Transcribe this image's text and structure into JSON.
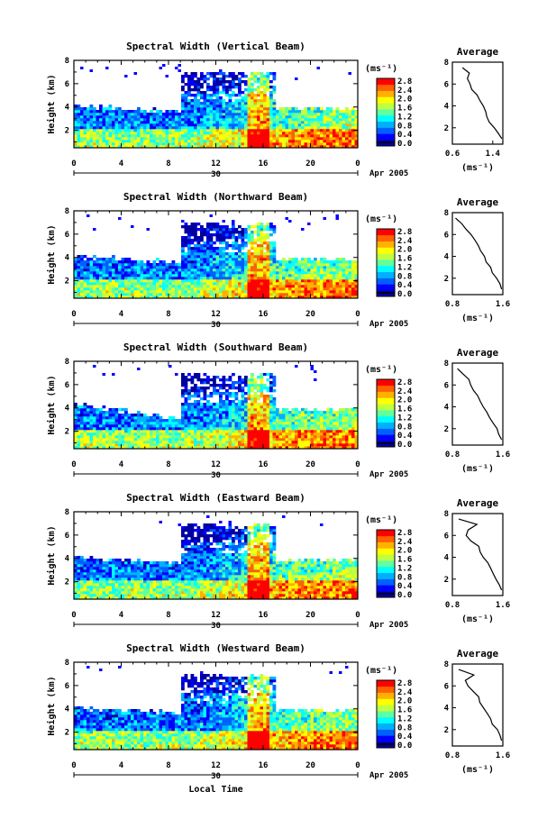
{
  "figure": {
    "xlabel": "Local Time"
  },
  "colorbar": {
    "unit_label": "(ms⁻¹)",
    "ticks": [
      "0.0",
      "0.4",
      "0.8",
      "1.2",
      "1.6",
      "2.0",
      "2.4",
      "2.8"
    ],
    "colors": [
      "#0000a0",
      "#0000ff",
      "#0060ff",
      "#00b0ff",
      "#00ffff",
      "#60ffa0",
      "#c0ff40",
      "#ffff00",
      "#ffb000",
      "#ff6000",
      "#ff0000"
    ]
  },
  "chart_data": [
    {
      "type": "heatmap",
      "title": "Spectral Width (Vertical Beam)",
      "ylabel": "Height (km)",
      "xlim": [
        0,
        24
      ],
      "ylim": [
        0.5,
        8
      ],
      "xticks": [
        "0",
        "4",
        "8",
        "12",
        "16",
        "20",
        "0"
      ],
      "yticks": [
        "2",
        "4",
        "6",
        "8"
      ],
      "date_marker": "30",
      "date_label": "Apr 2005",
      "profile": {
        "title": "Average",
        "xlim": [
          0.6,
          1.6
        ],
        "xticks": [
          "0.6",
          "1.4"
        ],
        "xlabel": "(ms⁻¹)",
        "heights": [
          1.0,
          1.5,
          2.0,
          2.5,
          3.0,
          3.5,
          4.0,
          4.5,
          5.0,
          5.5,
          6.0,
          6.5,
          7.0,
          7.5
        ],
        "values": [
          1.58,
          1.5,
          1.45,
          1.35,
          1.3,
          1.25,
          1.2,
          1.15,
          1.1,
          1.0,
          0.95,
          0.9,
          0.95,
          0.8
        ]
      }
    },
    {
      "type": "heatmap",
      "title": "Spectral Width (Northward Beam)",
      "ylabel": "Height (km)",
      "xlim": [
        0,
        24
      ],
      "ylim": [
        0.5,
        8
      ],
      "xticks": [
        "0",
        "4",
        "8",
        "12",
        "16",
        "20",
        "0"
      ],
      "yticks": [
        "2",
        "4",
        "6",
        "8"
      ],
      "date_marker": "30",
      "date_label": "Apr 2005",
      "profile": {
        "title": "Average",
        "xlim": [
          0.8,
          1.6
        ],
        "xticks": [
          "0.8",
          "1.6"
        ],
        "xlabel": "(ms⁻¹)",
        "heights": [
          1.0,
          1.5,
          2.0,
          2.5,
          3.0,
          3.5,
          4.0,
          4.5,
          5.0,
          5.5,
          6.0,
          6.5,
          7.0,
          7.5
        ],
        "values": [
          1.58,
          1.55,
          1.5,
          1.45,
          1.4,
          1.35,
          1.3,
          1.25,
          1.2,
          1.15,
          1.1,
          1.0,
          0.95,
          0.85
        ]
      }
    },
    {
      "type": "heatmap",
      "title": "Spectral Width (Southward Beam)",
      "ylabel": "Height (km)",
      "xlim": [
        0,
        24
      ],
      "ylim": [
        0.5,
        8
      ],
      "xticks": [
        "0",
        "4",
        "8",
        "12",
        "16",
        "20",
        "0"
      ],
      "yticks": [
        "2",
        "4",
        "6",
        "8"
      ],
      "date_marker": "30",
      "date_label": "Apr 2005",
      "profile": {
        "title": "Average",
        "xlim": [
          0.8,
          1.6
        ],
        "xticks": [
          "0.8",
          "1.6"
        ],
        "xlabel": "(ms⁻¹)",
        "heights": [
          1.0,
          1.5,
          2.0,
          2.5,
          3.0,
          3.5,
          4.0,
          4.5,
          5.0,
          5.5,
          6.0,
          6.5,
          7.0,
          7.5
        ],
        "values": [
          1.58,
          1.55,
          1.5,
          1.45,
          1.4,
          1.35,
          1.3,
          1.25,
          1.2,
          1.15,
          1.1,
          1.05,
          0.95,
          0.88
        ]
      }
    },
    {
      "type": "heatmap",
      "title": "Spectral Width (Eastward Beam)",
      "ylabel": "Height (km)",
      "xlim": [
        0,
        24
      ],
      "ylim": [
        0.5,
        8
      ],
      "xticks": [
        "0",
        "4",
        "8",
        "12",
        "16",
        "20",
        "0"
      ],
      "yticks": [
        "2",
        "4",
        "6",
        "8"
      ],
      "date_marker": "30",
      "date_label": "Apr 2005",
      "profile": {
        "title": "Average",
        "xlim": [
          0.8,
          1.6
        ],
        "xticks": [
          "0.8",
          "1.6"
        ],
        "xlabel": "(ms⁻¹)",
        "heights": [
          1.0,
          1.5,
          2.0,
          2.5,
          3.0,
          3.5,
          4.0,
          4.5,
          5.0,
          5.5,
          6.0,
          6.5,
          7.0,
          7.5
        ],
        "values": [
          1.58,
          1.55,
          1.5,
          1.45,
          1.4,
          1.35,
          1.3,
          1.25,
          1.2,
          1.1,
          1.0,
          1.05,
          1.2,
          0.9
        ]
      }
    },
    {
      "type": "heatmap",
      "title": "Spectral Width (Westward Beam)",
      "ylabel": "Height (km)",
      "xlim": [
        0,
        24
      ],
      "ylim": [
        0.5,
        8
      ],
      "xticks": [
        "0",
        "4",
        "8",
        "12",
        "16",
        "20",
        "0"
      ],
      "yticks": [
        "2",
        "4",
        "6",
        "8"
      ],
      "date_marker": "30",
      "date_label": "Apr 2005",
      "profile": {
        "title": "Average",
        "xlim": [
          0.8,
          1.6
        ],
        "xticks": [
          "0.8",
          "1.6"
        ],
        "xlabel": "(ms⁻¹)",
        "heights": [
          1.0,
          1.5,
          2.0,
          2.5,
          3.0,
          3.5,
          4.0,
          4.5,
          5.0,
          5.5,
          6.0,
          6.5,
          7.0,
          7.5
        ],
        "values": [
          1.58,
          1.55,
          1.5,
          1.45,
          1.4,
          1.35,
          1.3,
          1.25,
          1.2,
          1.15,
          1.05,
          1.0,
          1.15,
          0.9
        ]
      }
    }
  ]
}
